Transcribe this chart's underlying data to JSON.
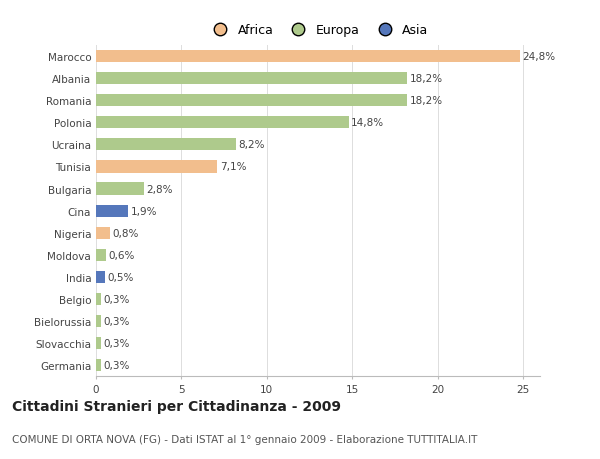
{
  "categories": [
    "Germania",
    "Slovacchia",
    "Bielorussia",
    "Belgio",
    "India",
    "Moldova",
    "Nigeria",
    "Cina",
    "Bulgaria",
    "Tunisia",
    "Ucraina",
    "Polonia",
    "Romania",
    "Albania",
    "Marocco"
  ],
  "values": [
    0.3,
    0.3,
    0.3,
    0.3,
    0.5,
    0.6,
    0.8,
    1.9,
    2.8,
    7.1,
    8.2,
    14.8,
    18.2,
    18.2,
    24.8
  ],
  "continents": [
    "Europa",
    "Europa",
    "Europa",
    "Europa",
    "Asia",
    "Europa",
    "Africa",
    "Asia",
    "Europa",
    "Africa",
    "Europa",
    "Europa",
    "Europa",
    "Europa",
    "Africa"
  ],
  "labels": [
    "0,3%",
    "0,3%",
    "0,3%",
    "0,3%",
    "0,5%",
    "0,6%",
    "0,8%",
    "1,9%",
    "2,8%",
    "7,1%",
    "8,2%",
    "14,8%",
    "18,2%",
    "18,2%",
    "24,8%"
  ],
  "color_map": {
    "Africa": "#F2BE8D",
    "Europa": "#AECA8C",
    "Asia": "#5577BB"
  },
  "title": "Cittadini Stranieri per Cittadinanza - 2009",
  "subtitle": "COMUNE DI ORTA NOVA (FG) - Dati ISTAT al 1° gennaio 2009 - Elaborazione TUTTITALIA.IT",
  "xlim": [
    0,
    26
  ],
  "background_color": "#ffffff",
  "bar_height": 0.55,
  "label_fontsize": 7.5,
  "tick_fontsize": 7.5,
  "title_fontsize": 10,
  "subtitle_fontsize": 7.5
}
